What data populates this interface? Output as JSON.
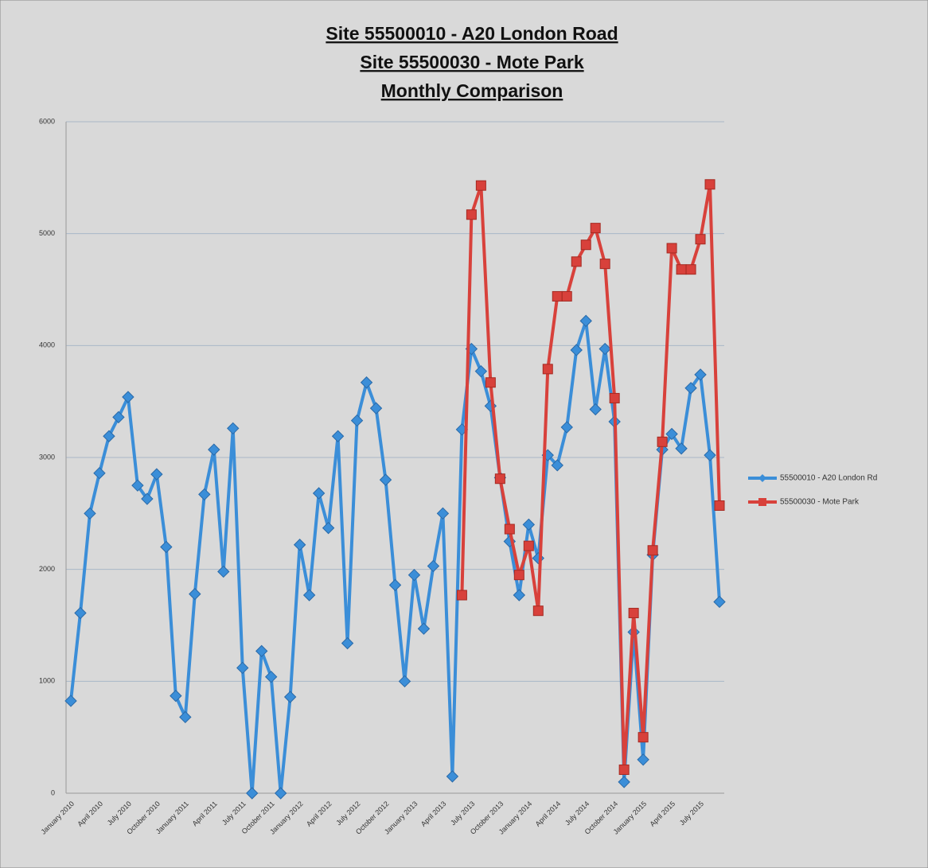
{
  "chart_data": {
    "type": "line",
    "title": [
      "Site 55500010 - A20 London Road",
      "Site 55500030 - Mote Park",
      "Monthly Comparison"
    ],
    "categories": [
      "January 2010",
      null,
      null,
      "April 2010",
      null,
      null,
      "July 2010",
      null,
      null,
      "October 2010",
      null,
      null,
      "January 2011",
      null,
      null,
      "April 2011",
      null,
      null,
      "July 2011",
      null,
      null,
      "October 2011",
      null,
      null,
      "January 2012",
      null,
      null,
      "April 2012",
      null,
      null,
      "July 2012",
      null,
      null,
      "October 2012",
      null,
      null,
      "January 2013",
      null,
      null,
      "April 2013",
      null,
      null,
      "July 2013",
      null,
      null,
      "October 2013",
      null,
      null,
      "January 2014",
      null,
      null,
      "April 2014",
      null,
      null,
      "July 2014",
      null,
      null,
      "October 2014",
      null,
      null,
      "January 2015",
      null,
      null,
      "April 2015",
      null,
      null,
      "July 2015",
      null,
      null
    ],
    "series": [
      {
        "name": "55500010 - A20 London Rd",
        "color": "#3b8ed8",
        "marker": "diamond",
        "values": [
          825,
          1610,
          2500,
          2860,
          3190,
          3360,
          3540,
          2750,
          2630,
          2850,
          2200,
          870,
          680,
          1780,
          2670,
          3070,
          1980,
          3260,
          1120,
          0,
          1270,
          1040,
          0,
          860,
          2220,
          1770,
          2680,
          2370,
          3190,
          1340,
          3330,
          3670,
          3440,
          2800,
          1860,
          1000,
          1950,
          1470,
          2030,
          2500,
          150,
          3250,
          3970,
          3770,
          3460,
          2820,
          2250,
          1770,
          2400,
          2100,
          3020,
          2930,
          3270,
          3960,
          4220,
          3430,
          3970,
          3320,
          100,
          1440,
          300,
          2130,
          3070,
          3210,
          3080,
          3620,
          3740,
          3020,
          1710
        ]
      },
      {
        "name": "55500030 - Mote Park",
        "color": "#d8413b",
        "marker": "square",
        "values": [
          null,
          null,
          null,
          null,
          null,
          null,
          null,
          null,
          null,
          null,
          null,
          null,
          null,
          null,
          null,
          null,
          null,
          null,
          null,
          null,
          null,
          null,
          null,
          null,
          null,
          null,
          null,
          null,
          null,
          null,
          null,
          null,
          null,
          null,
          null,
          null,
          null,
          null,
          null,
          null,
          null,
          1770,
          5170,
          5430,
          3670,
          2810,
          2360,
          1950,
          2210,
          1630,
          3790,
          4440,
          4440,
          4750,
          4900,
          5050,
          4730,
          3530,
          210,
          1610,
          500,
          2170,
          3140,
          4870,
          4680,
          4680,
          4950,
          5440,
          2570
        ]
      }
    ],
    "ylim": [
      0,
      6000
    ],
    "yticks": [
      0,
      1000,
      2000,
      3000,
      4000,
      5000,
      6000
    ],
    "grid": true,
    "legend": "right"
  }
}
